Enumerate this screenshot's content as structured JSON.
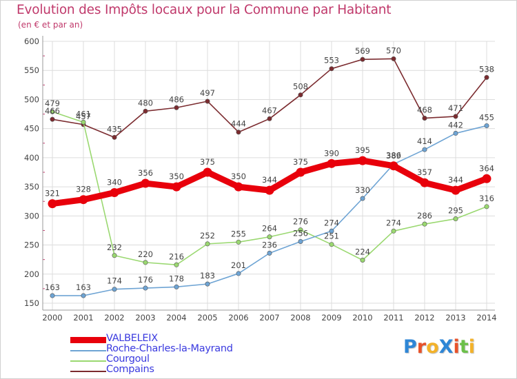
{
  "header": {
    "title": "Evolution des Impôts locaux pour la Commune par Habitant",
    "subtitle": "(en € et par an)"
  },
  "logo": {
    "text": "ProXiti",
    "letters": [
      "P",
      "r",
      "o",
      "X",
      "i",
      "t",
      "i"
    ],
    "letter_colors": [
      "#2e86d6",
      "#e8522a",
      "#f3b22a",
      "#2e86d6",
      "#e8522a",
      "#6cc04a",
      "#f3b22a"
    ]
  },
  "chart_data": {
    "type": "line",
    "title": "Evolution des Impôts locaux pour la Commune par Habitant",
    "subtitle": "(en € et par an)",
    "xlabel": "",
    "ylabel": "",
    "x": [
      "2000",
      "2001",
      "2002",
      "2003",
      "2004",
      "2005",
      "2006",
      "2007",
      "2008",
      "2009",
      "2010",
      "2011",
      "2012",
      "2013",
      "2014"
    ],
    "ylim": [
      150,
      600
    ],
    "yticks": [
      "150",
      "200",
      "250",
      "300",
      "350",
      "400",
      "450",
      "500",
      "550",
      "600"
    ],
    "grid": true,
    "legend_position": "bottom-left",
    "series": [
      {
        "name": "Compains",
        "color": "#7b2b2f",
        "values": [
          466,
          457,
          435,
          480,
          486,
          497,
          444,
          467,
          508,
          553,
          569,
          570,
          468,
          471,
          538
        ],
        "labels": [
          "466",
          "457",
          "435",
          "480",
          "486",
          "497",
          "444",
          "467",
          "508",
          "553",
          "569",
          "570",
          "468",
          "471",
          "538"
        ]
      },
      {
        "name": "Courgoul",
        "color": "#9ad870",
        "values": [
          479,
          461,
          232,
          220,
          216,
          252,
          255,
          264,
          276,
          251,
          224,
          274,
          286,
          295,
          316
        ],
        "labels": [
          "479",
          "461",
          "232",
          "220",
          "216",
          "252",
          "255",
          "264",
          "276",
          "251",
          "224",
          "274",
          "286",
          "295",
          "316"
        ]
      },
      {
        "name": "Roche-Charles-la-Mayrand",
        "color": "#6ea4d4",
        "values": [
          163,
          163,
          174,
          176,
          178,
          183,
          201,
          236,
          256,
          274,
          330,
          389,
          414,
          442,
          455
        ],
        "labels": [
          "163",
          "163",
          "174",
          "176",
          "178",
          "183",
          "201",
          "236",
          "256",
          "274",
          "330",
          "389",
          "414",
          "442",
          "455"
        ]
      },
      {
        "name": "VALBELEIX",
        "color": "#e8000b",
        "values": [
          321,
          328,
          340,
          356,
          350,
          375,
          350,
          344,
          375,
          390,
          395,
          386,
          357,
          344,
          364
        ],
        "labels": [
          "321",
          "328",
          "340",
          "356",
          "350",
          "375",
          "350",
          "344",
          "375",
          "390",
          "395",
          "386",
          "357",
          "344",
          "364"
        ]
      }
    ],
    "legend_order": [
      "VALBELEIX",
      "Roche-Charles-la-Mayrand",
      "Courgoul",
      "Compains"
    ]
  }
}
